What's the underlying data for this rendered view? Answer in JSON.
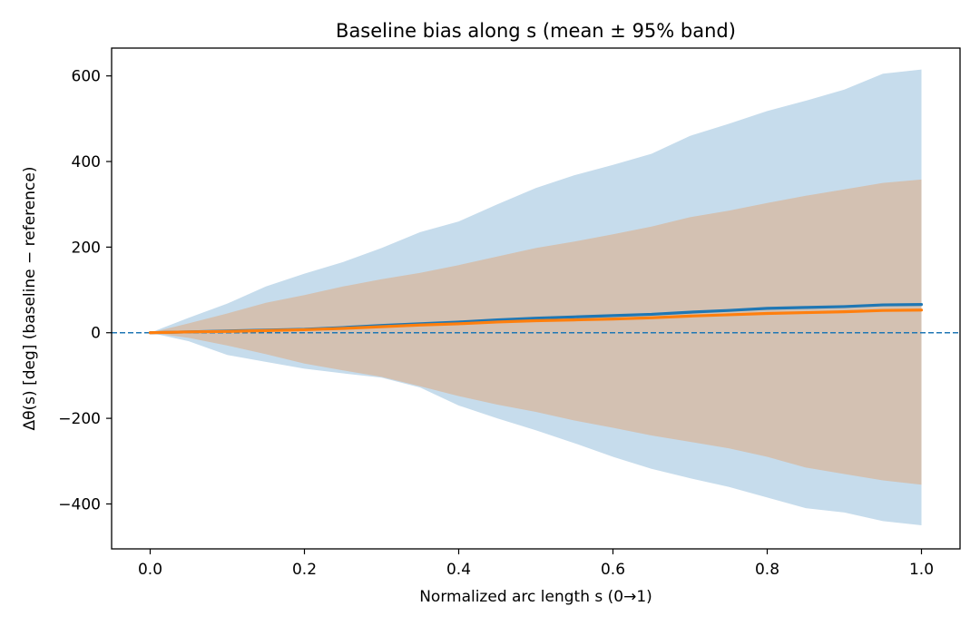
{
  "chart_data": {
    "type": "line",
    "title": "Baseline bias along s (mean ± 95% band)",
    "xlabel": "Normalized arc length s (0→1)",
    "ylabel": "Δθ(s) [deg] (baseline − reference)",
    "xlim": [
      -0.05,
      1.05
    ],
    "ylim": [
      -505,
      665
    ],
    "xticks": [
      0.0,
      0.2,
      0.4,
      0.6,
      0.8,
      1.0
    ],
    "xtick_labels": [
      "0.0",
      "0.2",
      "0.4",
      "0.6",
      "0.8",
      "1.0"
    ],
    "yticks": [
      -400,
      -200,
      0,
      200,
      400,
      600
    ],
    "ytick_labels": [
      "−400",
      "−200",
      "0",
      "200",
      "400",
      "600"
    ],
    "grid": false,
    "reference_line": {
      "y": 0,
      "style": "dashed",
      "color": "#1f77b4"
    },
    "x": [
      0.0,
      0.05,
      0.1,
      0.15,
      0.2,
      0.25,
      0.3,
      0.35,
      0.4,
      0.45,
      0.5,
      0.55,
      0.6,
      0.65,
      0.7,
      0.75,
      0.8,
      0.85,
      0.9,
      0.95,
      1.0
    ],
    "series": [
      {
        "color": "#1f77b4",
        "values": [
          0,
          2,
          4,
          6,
          8,
          12,
          17,
          21,
          25,
          30,
          34,
          37,
          40,
          43,
          48,
          52,
          57,
          59,
          61,
          65,
          66
        ],
        "band_lower": [
          0,
          -20,
          -52,
          -68,
          -84,
          -95,
          -105,
          -128,
          -170,
          -200,
          -228,
          -258,
          -290,
          -318,
          -340,
          -360,
          -385,
          -410,
          -420,
          -440,
          -450
        ],
        "band_upper": [
          0,
          35,
          68,
          108,
          138,
          165,
          198,
          235,
          260,
          300,
          338,
          368,
          392,
          418,
          460,
          488,
          518,
          542,
          568,
          605,
          615
        ],
        "band_color": "#c6dcec"
      },
      {
        "color": "#ff7f0e",
        "values": [
          0,
          2,
          3,
          5,
          7,
          10,
          14,
          18,
          21,
          25,
          28,
          30,
          32,
          35,
          39,
          42,
          45,
          47,
          49,
          52,
          53
        ],
        "band_lower": [
          0,
          -12,
          -30,
          -50,
          -72,
          -88,
          -103,
          -125,
          -148,
          -168,
          -185,
          -205,
          -222,
          -240,
          -255,
          -270,
          -290,
          -315,
          -330,
          -345,
          -355
        ],
        "band_upper": [
          0,
          22,
          45,
          70,
          88,
          108,
          125,
          140,
          158,
          178,
          198,
          213,
          230,
          248,
          270,
          285,
          303,
          320,
          335,
          350,
          358
        ],
        "band_color": "#d3c1b2"
      }
    ]
  }
}
